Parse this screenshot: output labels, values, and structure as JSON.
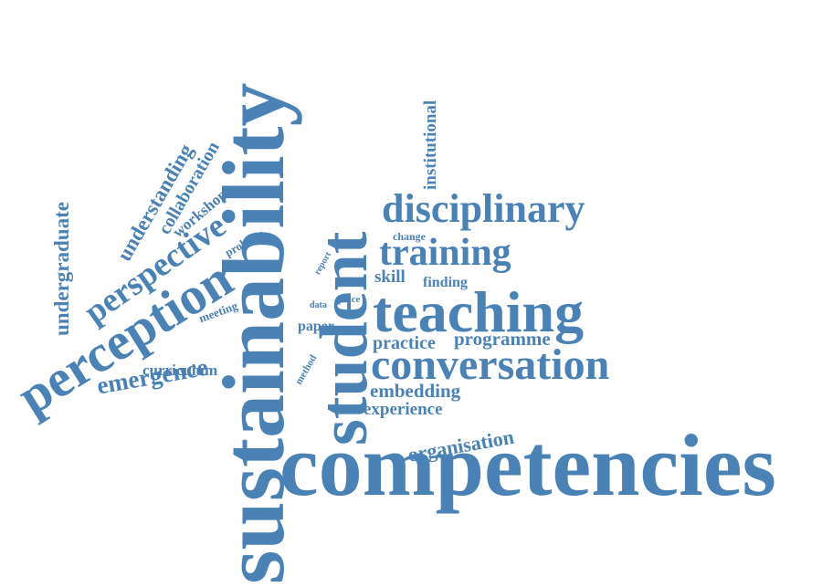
{
  "colors": {
    "text": "#4a82b6",
    "background": "#ffffff"
  },
  "words": {
    "sustainability": "sustainability",
    "competencies": "competencies",
    "student": "student",
    "teaching": "teaching",
    "perception": "perception",
    "conversation": "conversation",
    "disciplinary": "disciplinary",
    "training": "training",
    "perspective": "perspective",
    "emergence": "emergence",
    "understanding": "understanding",
    "undergraduate": "undergraduate",
    "collaboration": "collaboration",
    "workshop": "workshop",
    "institutional": "institutional",
    "practice": "practice",
    "programme": "programme",
    "embedding": "embedding",
    "experience": "experience",
    "organisation": "organisation",
    "curriculum": "curriculum",
    "skill": "skill",
    "finding": "finding",
    "paper": "paper",
    "meeting": "meeting",
    "problem": "problem",
    "change": "change",
    "report": "report",
    "data": "data",
    "place": "place",
    "method": "method"
  }
}
